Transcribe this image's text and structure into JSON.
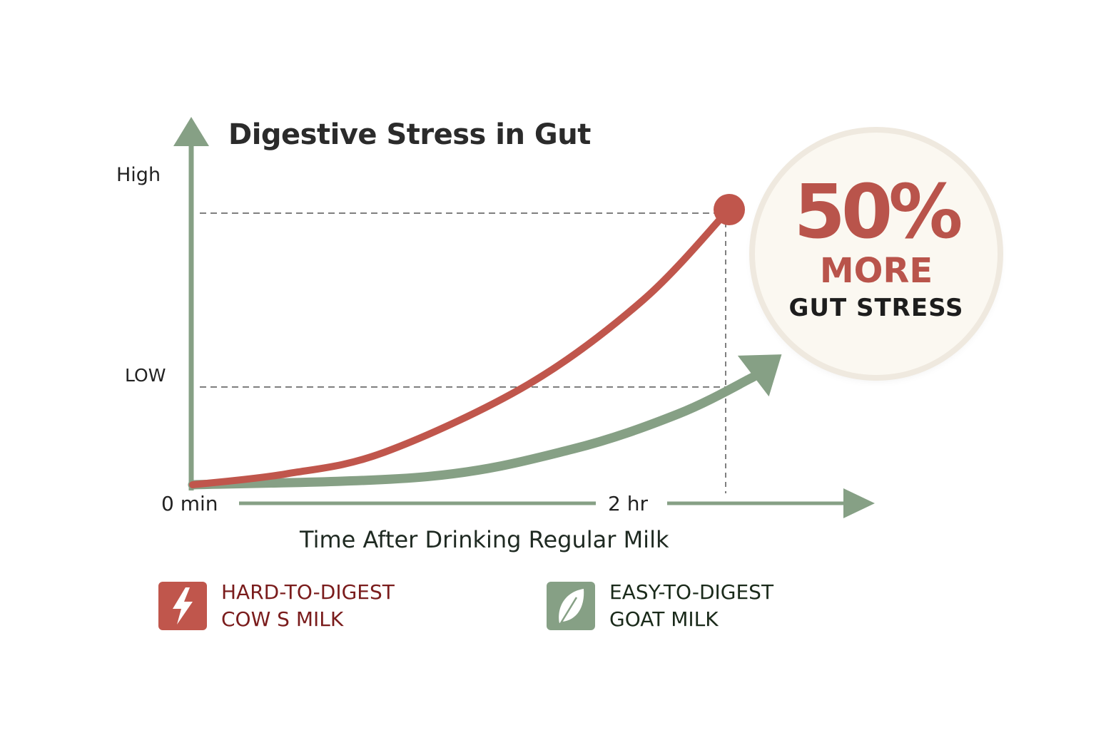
{
  "chart_data": {
    "type": "line",
    "title": "Digestive Stress in Gut",
    "xlabel": "Time After Drinking Regular Milk",
    "x_ticks": [
      "0 min",
      "2 hr"
    ],
    "x_unit": "hr",
    "y_ticks": [
      "High",
      "LOW"
    ],
    "y_levels": {
      "High": 1.0,
      "LOW": 0.36
    },
    "xlim": [
      0,
      2.4
    ],
    "ylim": [
      0,
      1.15
    ],
    "grid": false,
    "reference_lines": "dashed at High, LOW and 2 hr",
    "series": [
      {
        "key": "cow",
        "color": "#c0564c",
        "marker_end": "dot",
        "x": [
          0,
          0.35,
          0.72,
          1.26,
          1.69,
          2.0
        ],
        "y": [
          0,
          0.04,
          0.12,
          0.37,
          0.68,
          1.0
        ]
      },
      {
        "key": "goat",
        "color": "#86a085",
        "marker_end": "arrow",
        "x": [
          0,
          0.88,
          1.42,
          1.82,
          2.09,
          2.21
        ],
        "y": [
          0,
          0.03,
          0.13,
          0.26,
          0.39,
          0.48
        ]
      }
    ]
  },
  "callout": {
    "percent": "50%",
    "line1": "MORE",
    "line2": "GUT STRESS"
  },
  "legend": [
    {
      "icon": "lightning-bolt-icon",
      "line1": "HARD-TO-DIGEST",
      "line2": "COW S MILK",
      "color": "#c0564c",
      "text_color": "#7a1c1c"
    },
    {
      "icon": "leaf-icon",
      "line1": "EASY-TO-DIGEST",
      "line2": "GOAT MILK",
      "color": "#86a085",
      "text_color": "#1a2a1a"
    }
  ],
  "colors": {
    "axis": "#86a085",
    "dash": "#555555"
  }
}
